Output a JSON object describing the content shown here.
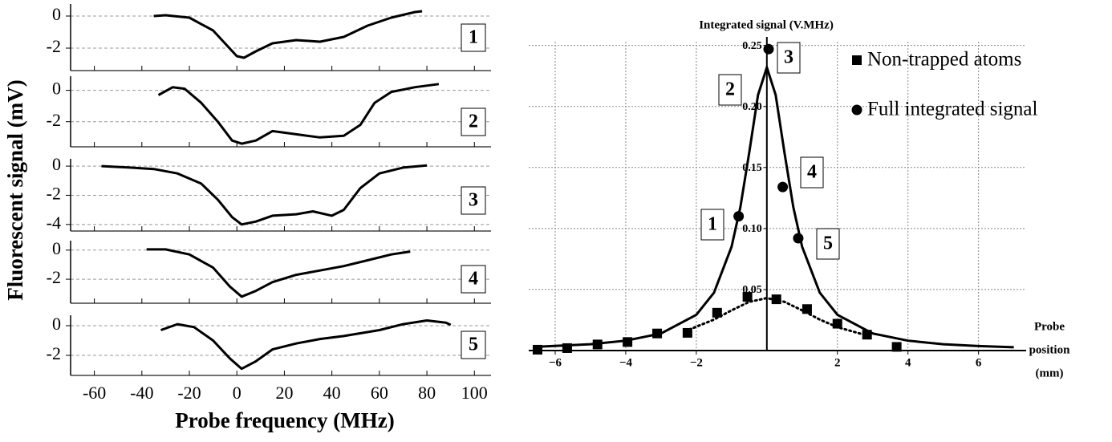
{
  "chart_data": [
    {
      "type": "line",
      "label": "1",
      "xlim": [
        -70,
        107
      ],
      "ylim": [
        -3.4,
        0.75
      ],
      "yticks": [
        0,
        -2
      ],
      "x": [
        -35,
        -30,
        -20,
        -10,
        -5,
        0,
        3,
        8,
        15,
        25,
        35,
        45,
        55,
        65,
        75,
        78
      ],
      "values": [
        0,
        0.05,
        -0.1,
        -0.9,
        -1.7,
        -2.5,
        -2.6,
        -2.2,
        -1.7,
        -1.5,
        -1.6,
        -1.3,
        -0.6,
        -0.1,
        0.25,
        0.3
      ]
    },
    {
      "type": "line",
      "label": "2",
      "xlim": [
        -70,
        107
      ],
      "ylim": [
        -3.6,
        0.9
      ],
      "yticks": [
        0,
        -2
      ],
      "x": [
        -33,
        -27,
        -22,
        -15,
        -8,
        -2,
        2,
        8,
        15,
        25,
        35,
        45,
        52,
        58,
        65,
        75,
        85
      ],
      "values": [
        -0.3,
        0.2,
        0.1,
        -0.8,
        -2.0,
        -3.2,
        -3.4,
        -3.2,
        -2.6,
        -2.8,
        -3.0,
        -2.9,
        -2.2,
        -0.8,
        -0.1,
        0.2,
        0.4
      ]
    },
    {
      "type": "line",
      "label": "3",
      "xlim": [
        -70,
        107
      ],
      "ylim": [
        -4.45,
        0.5
      ],
      "yticks": [
        0,
        -2,
        -4
      ],
      "ylabel": "Fluorescent signal (mV)",
      "x": [
        -57,
        -45,
        -35,
        -25,
        -15,
        -8,
        -2,
        2,
        8,
        15,
        25,
        32,
        40,
        45,
        52,
        60,
        70,
        80
      ],
      "values": [
        0,
        -0.1,
        -0.2,
        -0.5,
        -1.2,
        -2.3,
        -3.5,
        -4.0,
        -3.8,
        -3.4,
        -3.3,
        -3.1,
        -3.4,
        -3.0,
        -1.5,
        -0.5,
        -0.1,
        0.05
      ]
    },
    {
      "type": "line",
      "label": "4",
      "xlim": [
        -70,
        107
      ],
      "ylim": [
        -3.65,
        0.65
      ],
      "yticks": [
        0,
        -2
      ],
      "x": [
        -38,
        -30,
        -20,
        -10,
        -3,
        2,
        8,
        15,
        25,
        35,
        45,
        55,
        65,
        73
      ],
      "values": [
        0.05,
        0.05,
        -0.3,
        -1.2,
        -2.5,
        -3.2,
        -2.8,
        -2.2,
        -1.7,
        -1.4,
        -1.1,
        -0.7,
        -0.3,
        -0.1
      ]
    },
    {
      "type": "line",
      "label": "5",
      "xlim": [
        -70,
        107
      ],
      "ylim": [
        -3.35,
        0.7
      ],
      "yticks": [
        0,
        -2
      ],
      "xticks": [
        -60,
        -40,
        -20,
        0,
        20,
        40,
        60,
        80,
        100
      ],
      "xlabel": "Probe frequency (MHz)",
      "x": [
        -32,
        -25,
        -18,
        -10,
        -3,
        2,
        8,
        15,
        25,
        35,
        45,
        60,
        70,
        80,
        88,
        90
      ],
      "values": [
        -0.3,
        0.1,
        -0.1,
        -1.0,
        -2.2,
        -2.9,
        -2.4,
        -1.6,
        -1.2,
        -0.9,
        -0.7,
        -0.3,
        0.1,
        0.35,
        0.2,
        0.05
      ]
    },
    {
      "type": "scatter",
      "title": "Integrated signal (V.MHz)",
      "xlabel": [
        "Probe",
        "position",
        "(mm)"
      ],
      "xlim": [
        -6.75,
        7.35
      ],
      "ylim": [
        0,
        0.257
      ],
      "xticks": [
        {
          "value": -6,
          "label": "−6"
        },
        {
          "value": -4,
          "label": "−4"
        },
        {
          "value": -2,
          "label": "−2"
        },
        2,
        4,
        6
      ],
      "yticks": [
        0.05,
        {
          "value": 0.1,
          "label": "0.10"
        },
        0.15,
        {
          "value": 0.2,
          "label": "0.20"
        },
        0.25
      ],
      "grid": true,
      "color": "#000000",
      "annotations": [
        "1",
        "2",
        "3",
        "4",
        "5"
      ],
      "series": [
        {
          "name": "Non-trapped atoms",
          "marker": "square",
          "x": [
            -6.5,
            -5.66,
            -4.8,
            -3.95,
            -3.11,
            -2.25,
            -1.41,
            -0.55,
            0.27,
            1.14,
            2.0,
            2.84,
            3.68
          ],
          "values": [
            0.0007,
            0.002,
            0.005,
            0.007,
            0.014,
            0.0145,
            0.031,
            0.044,
            0.042,
            0.034,
            0.022,
            0.013,
            0.003
          ]
        },
        {
          "name": "Full integrated signal",
          "marker": "circle",
          "x": [
            -0.8,
            0.05,
            0.45,
            0.89
          ],
          "values": [
            0.11,
            0.247,
            0.134,
            0.092
          ]
        }
      ],
      "curves": [
        {
          "style": "solid",
          "x": [
            -6.5,
            -5,
            -4,
            -3,
            -2,
            -1.5,
            -1,
            -0.75,
            -0.5,
            -0.25,
            0,
            0.25,
            0.5,
            0.75,
            1,
            1.5,
            2,
            3,
            4,
            5,
            6,
            7
          ],
          "values": [
            0.0031,
            0.0052,
            0.0081,
            0.014,
            0.0293,
            0.0474,
            0.085,
            0.1175,
            0.162,
            0.2094,
            0.232,
            0.2094,
            0.162,
            0.1175,
            0.085,
            0.0474,
            0.0293,
            0.014,
            0.0081,
            0.0052,
            0.0037,
            0.0027
          ]
        },
        {
          "style": "dotted",
          "x": [
            -2.2,
            -1.5,
            -1,
            -0.5,
            0,
            0.5,
            1,
            1.5,
            2,
            2.8
          ],
          "values": [
            0.0172,
            0.0254,
            0.0329,
            0.0399,
            0.043,
            0.0399,
            0.0329,
            0.0254,
            0.0192,
            0.0126
          ]
        }
      ]
    }
  ]
}
